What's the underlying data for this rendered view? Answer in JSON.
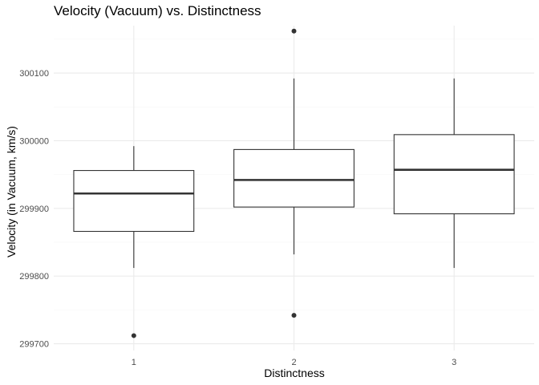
{
  "chart_data": {
    "type": "boxplot",
    "title": "Velocity (Vacuum) vs. Distinctness",
    "xlabel": "Distinctness",
    "ylabel": "Velocity (in Vacuum, km/s)",
    "ylim": [
      299690,
      300170
    ],
    "y_ticks": [
      299700,
      299800,
      299900,
      300000,
      300100
    ],
    "y_minor_ticks": [
      299750,
      299850,
      299950,
      300050,
      300150
    ],
    "grid": true,
    "legend": "none",
    "categories": [
      "1",
      "2",
      "3"
    ],
    "boxes": [
      {
        "category": "1",
        "whisker_low": 299812,
        "q1": 299866,
        "median": 299922,
        "q3": 299956,
        "whisker_high": 299992,
        "outliers": [
          299712
        ]
      },
      {
        "category": "2",
        "whisker_low": 299832,
        "q1": 299902,
        "median": 299942,
        "q3": 299987,
        "whisker_high": 300092,
        "outliers": [
          300162,
          299742
        ]
      },
      {
        "category": "3",
        "whisker_low": 299812,
        "q1": 299892,
        "median": 299957,
        "q3": 300009,
        "whisker_high": 300092,
        "outliers": []
      }
    ],
    "colors": {
      "box_fill": "#ffffff",
      "box_line": "#333333",
      "grid_major": "#ebebeb",
      "grid_minor": "#f5f5f5",
      "tick_text": "#4d4d4d"
    }
  }
}
